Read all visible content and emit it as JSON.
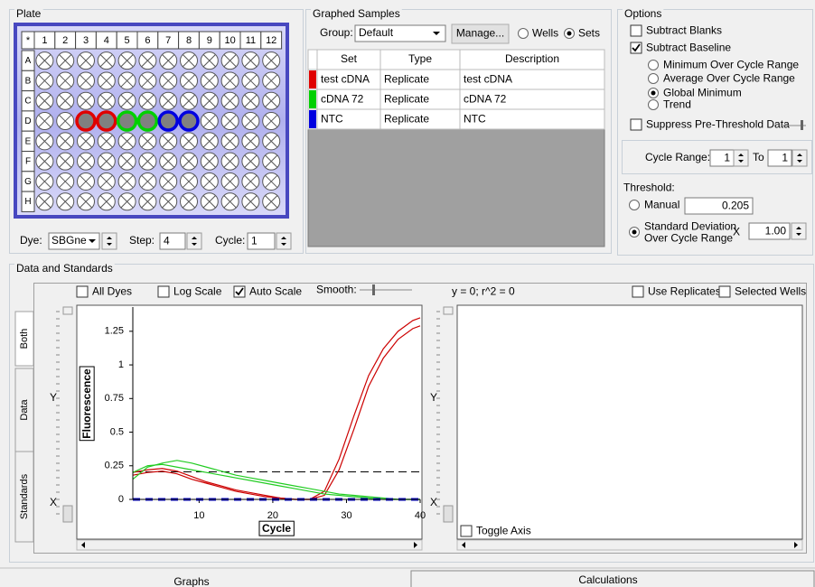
{
  "plate": {
    "title": "Plate",
    "columns": [
      "*",
      "1",
      "2",
      "3",
      "4",
      "5",
      "6",
      "7",
      "8",
      "9",
      "10",
      "11",
      "12"
    ],
    "rows": [
      "A",
      "B",
      "C",
      "D",
      "E",
      "F",
      "G",
      "H"
    ],
    "dye_label": "Dye:",
    "dye": "SBGne",
    "step_label": "Step:",
    "step": 4,
    "cycle_label": "Cycle:",
    "cycle": 1
  },
  "graphed_samples": {
    "title": "Graphed Samples",
    "group_label": "Group:",
    "group": "Default",
    "manage": "Manage...",
    "wells": "Wells",
    "sets": "Sets",
    "columns": [
      "Set",
      "Type",
      "Description"
    ],
    "rows": [
      [
        "test cDNA",
        "Replicate",
        "test cDNA"
      ],
      [
        "cDNA 72",
        "Replicate",
        "cDNA 72"
      ],
      [
        "NTC",
        "Replicate",
        "NTC"
      ]
    ],
    "row_colors": [
      "#e00000",
      "#00d000",
      "#0000e0"
    ]
  },
  "options": {
    "title": "Options",
    "subtract_blanks": "Subtract Blanks",
    "subtract_baseline": "Subtract Baseline",
    "baseline_methods": [
      "Minimum Over Cycle Range",
      "Average Over Cycle Range",
      "Global Minimum",
      "Trend"
    ],
    "suppress": "Suppress Pre-Threshold Data",
    "cycle_range_label": "Cycle Range:",
    "cycle_from": 1,
    "to_label": "To",
    "cycle_to": 1,
    "threshold_label": "Threshold:",
    "manual": "Manual",
    "manual_value": 0.205,
    "std_dev": [
      "Standard Deviation",
      "Over Cycle Range"
    ],
    "x_label": "X",
    "std_dev_value": "1.00"
  },
  "data_standards": {
    "title": "Data and Standards",
    "all_dyes": "All Dyes",
    "log_scale": "Log Scale",
    "auto_scale": "Auto Scale",
    "smooth": "Smooth:",
    "tabs": [
      "Both",
      "Data",
      "Standards"
    ],
    "axis_y": "Y",
    "axis_x": "X",
    "equation": "y = 0;  r^2 = 0",
    "use_replicates": "Use Replicates",
    "selected_wells": "Selected Wells",
    "toggle_axis": "Toggle Axis"
  },
  "tabs": [
    "Graphs",
    "Calculations"
  ],
  "chart_data": {
    "type": "line",
    "x_label": "Cycle",
    "y_label": "Fluorescence",
    "x": [
      1,
      3,
      5,
      7,
      9,
      11,
      13,
      15,
      17,
      19,
      21,
      23,
      25,
      27,
      29,
      31,
      33,
      35,
      37,
      39,
      40
    ],
    "xlim": [
      1,
      40
    ],
    "xticks": [
      10,
      20,
      30,
      40
    ],
    "ylim": [
      0,
      1.41
    ],
    "yticks": [
      0,
      0.25,
      0.5,
      0.75,
      1,
      1.25
    ],
    "series": [
      {
        "color": "#cc0000",
        "values": [
          0.2,
          0.22,
          0.23,
          0.21,
          0.17,
          0.13,
          0.1,
          0.07,
          0.05,
          0.03,
          0.01,
          0,
          0,
          0.06,
          0.3,
          0.62,
          0.92,
          1.12,
          1.25,
          1.33,
          1.35
        ]
      },
      {
        "color": "#cc0000",
        "values": [
          0.18,
          0.2,
          0.21,
          0.19,
          0.15,
          0.12,
          0.09,
          0.06,
          0.04,
          0.02,
          0.01,
          0,
          0,
          0.03,
          0.22,
          0.52,
          0.84,
          1.05,
          1.19,
          1.27,
          1.29
        ]
      },
      {
        "color": "#22cc22",
        "values": [
          0.15,
          0.24,
          0.27,
          0.29,
          0.27,
          0.24,
          0.21,
          0.18,
          0.16,
          0.14,
          0.12,
          0.1,
          0.08,
          0.06,
          0.04,
          0.03,
          0.02,
          0.01,
          0,
          0,
          0
        ]
      },
      {
        "color": "#22cc22",
        "values": [
          0.2,
          0.25,
          0.26,
          0.24,
          0.22,
          0.2,
          0.18,
          0.16,
          0.14,
          0.12,
          0.1,
          0.08,
          0.06,
          0.04,
          0.03,
          0.02,
          0.01,
          0,
          0,
          0,
          0
        ]
      },
      {
        "color": "#0000cc",
        "dashed": true,
        "values": [
          0,
          0,
          0,
          0,
          0,
          0,
          0,
          0,
          0,
          0,
          0,
          0,
          0,
          0,
          0,
          0,
          0,
          0,
          0,
          0,
          0
        ]
      }
    ]
  }
}
